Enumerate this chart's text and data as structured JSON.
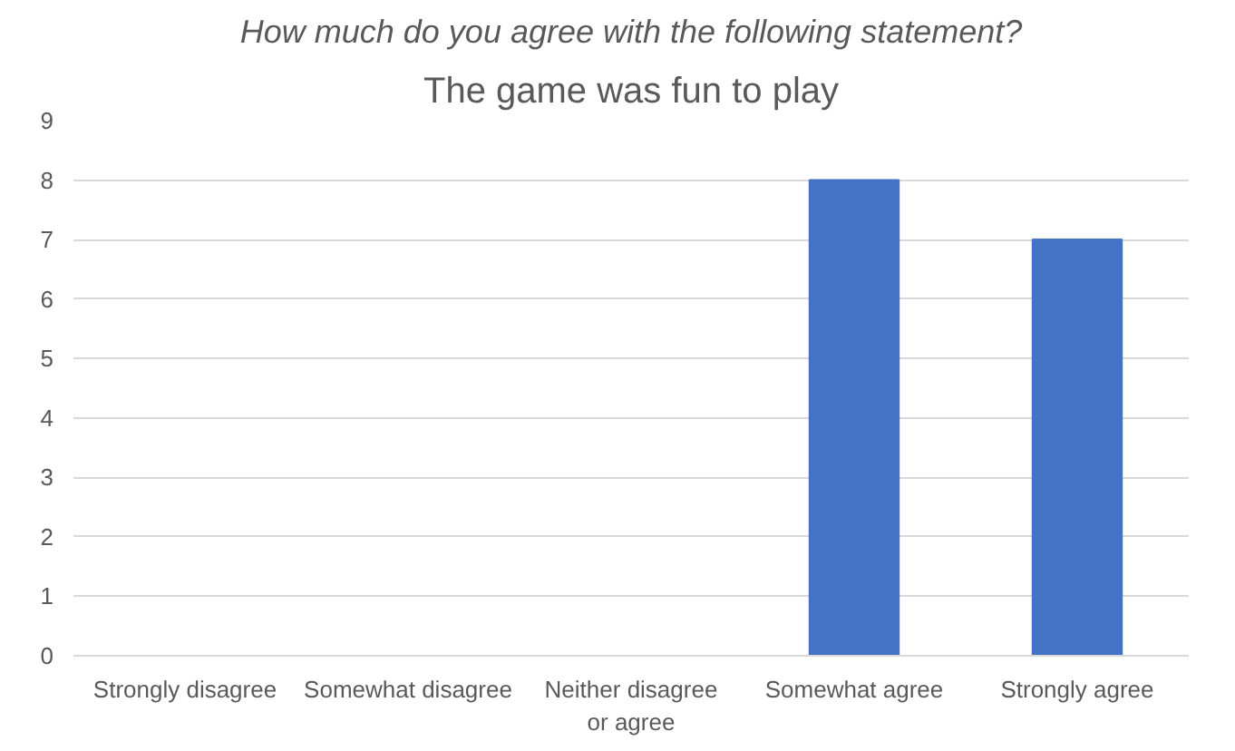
{
  "chart_data": {
    "type": "bar",
    "title": "The game was fun to play",
    "subtitle": "How much do you agree with the following statement?",
    "categories": [
      "Strongly disagree",
      "Somewhat disagree",
      "Neither disagree or agree",
      "Somewhat agree",
      "Strongly agree"
    ],
    "values": [
      0,
      0,
      0,
      8,
      7
    ],
    "color": "#4472c4",
    "ylim": [
      0,
      9
    ],
    "yticks": [
      0,
      1,
      2,
      3,
      4,
      5,
      6,
      7,
      8,
      9
    ],
    "grid": "y"
  }
}
